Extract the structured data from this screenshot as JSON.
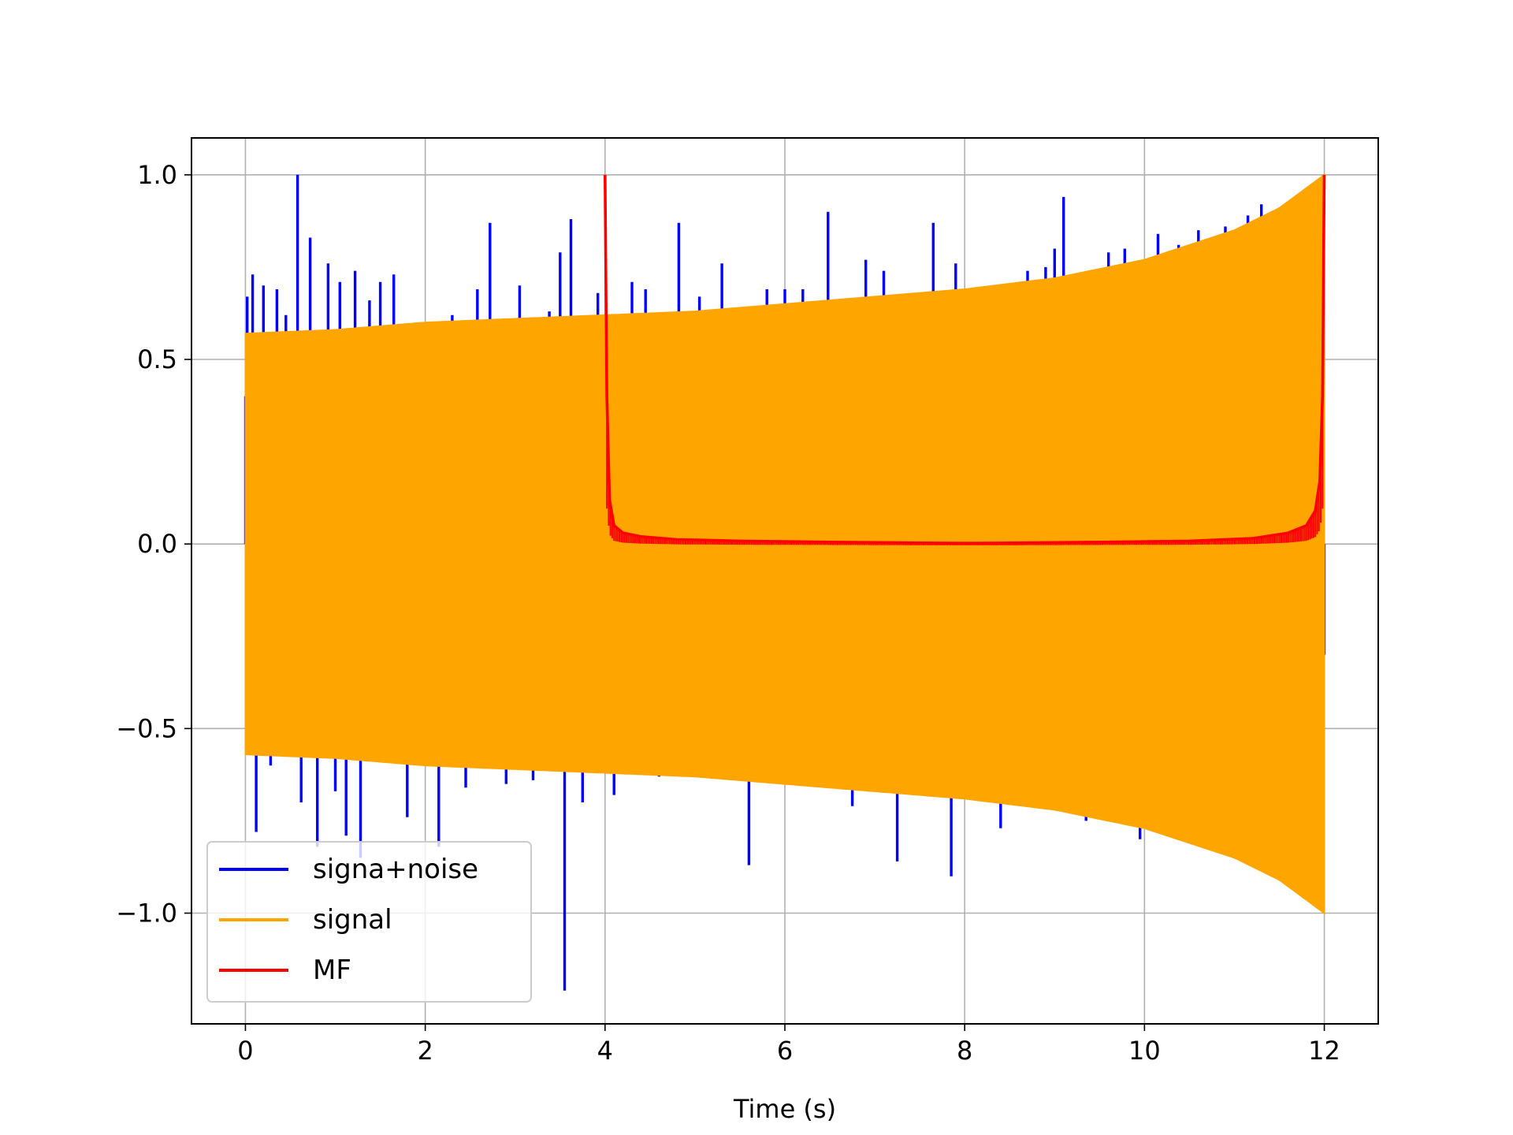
{
  "chart_data": {
    "type": "line",
    "title": "",
    "xlabel": "Time (s)",
    "ylabel": "",
    "xlim": [
      -0.6,
      12.6
    ],
    "ylim": [
      -1.3,
      1.1
    ],
    "grid": true,
    "x_ticks": [
      0,
      2,
      4,
      6,
      8,
      10,
      12
    ],
    "x_tick_labels": [
      "0",
      "2",
      "4",
      "6",
      "8",
      "10",
      "12"
    ],
    "y_ticks": [
      1.0,
      0.5,
      0.0,
      -0.5,
      -1.0
    ],
    "y_tick_labels": [
      "1.0",
      "0.5",
      "0.0",
      "−0.5",
      "−1.0"
    ],
    "legend_position": "lower-left",
    "series": [
      {
        "name": "signa+noise",
        "color": "#0000ff",
        "x": [
          0.0,
          0.02,
          0.05,
          0.08,
          0.12,
          0.2,
          0.28,
          0.35,
          0.45,
          0.58,
          0.62,
          0.72,
          0.8,
          0.92,
          1.0,
          1.05,
          1.12,
          1.22,
          1.28,
          1.38,
          1.5,
          1.65,
          1.8,
          1.98,
          2.15,
          2.3,
          2.45,
          2.58,
          2.72,
          2.9,
          3.05,
          3.2,
          3.38,
          3.5,
          3.55,
          3.62,
          3.75,
          3.92,
          4.1,
          4.3,
          4.45,
          4.6,
          4.82,
          5.05,
          5.3,
          5.6,
          5.8,
          6.0,
          6.2,
          6.48,
          6.75,
          6.9,
          7.1,
          7.25,
          7.45,
          7.65,
          7.85,
          7.9,
          8.1,
          8.4,
          8.7,
          8.9,
          9.0,
          9.1,
          9.35,
          9.6,
          9.78,
          9.95,
          10.15,
          10.38,
          10.6,
          10.9,
          11.15,
          11.3,
          11.6,
          11.85,
          12.0
        ],
        "y": [
          0.4,
          0.67,
          -0.55,
          0.73,
          -0.78,
          0.7,
          -0.6,
          0.69,
          0.62,
          1.0,
          -0.7,
          0.83,
          -0.82,
          0.76,
          -0.67,
          0.71,
          -0.79,
          0.74,
          -0.85,
          0.66,
          0.71,
          0.73,
          -0.74,
          0.6,
          -0.82,
          0.62,
          -0.66,
          0.69,
          0.87,
          -0.65,
          0.7,
          -0.64,
          0.63,
          0.79,
          -1.21,
          0.88,
          -0.7,
          0.68,
          -0.68,
          0.71,
          0.69,
          -0.63,
          0.87,
          0.67,
          0.76,
          -0.87,
          0.69,
          0.69,
          0.69,
          0.9,
          -0.71,
          0.77,
          0.74,
          -0.86,
          0.67,
          0.87,
          -0.9,
          0.76,
          0.69,
          -0.77,
          0.74,
          0.75,
          0.8,
          0.94,
          -0.75,
          0.79,
          0.8,
          -0.8,
          0.84,
          0.81,
          0.85,
          0.86,
          0.89,
          0.92,
          0.92,
          0.96,
          -0.3
        ]
      },
      {
        "name": "signal",
        "color": "#ffa500",
        "envelope_x": [
          0,
          1,
          2,
          3,
          4,
          5,
          6,
          7,
          8,
          9,
          10,
          11,
          11.5,
          12
        ],
        "envelope_upper": [
          0.57,
          0.58,
          0.6,
          0.61,
          0.62,
          0.63,
          0.65,
          0.67,
          0.69,
          0.72,
          0.77,
          0.85,
          0.91,
          1.0
        ],
        "envelope_lower": [
          -0.57,
          -0.58,
          -0.6,
          -0.61,
          -0.62,
          -0.63,
          -0.65,
          -0.67,
          -0.69,
          -0.72,
          -0.77,
          -0.85,
          -0.91,
          -1.0
        ]
      },
      {
        "name": "MF",
        "color": "#ff0000",
        "x": [
          4.0,
          4.02,
          4.05,
          4.1,
          4.2,
          4.4,
          4.8,
          5.5,
          6.5,
          7.5,
          8.0,
          8.5,
          9.5,
          10.5,
          11.2,
          11.6,
          11.8,
          11.9,
          11.95,
          11.98,
          12.0
        ],
        "y": [
          1.0,
          0.4,
          0.12,
          0.05,
          0.03,
          0.02,
          0.012,
          0.008,
          0.005,
          0.003,
          0.002,
          0.003,
          0.005,
          0.008,
          0.015,
          0.03,
          0.05,
          0.09,
          0.17,
          0.4,
          1.0
        ]
      }
    ]
  }
}
